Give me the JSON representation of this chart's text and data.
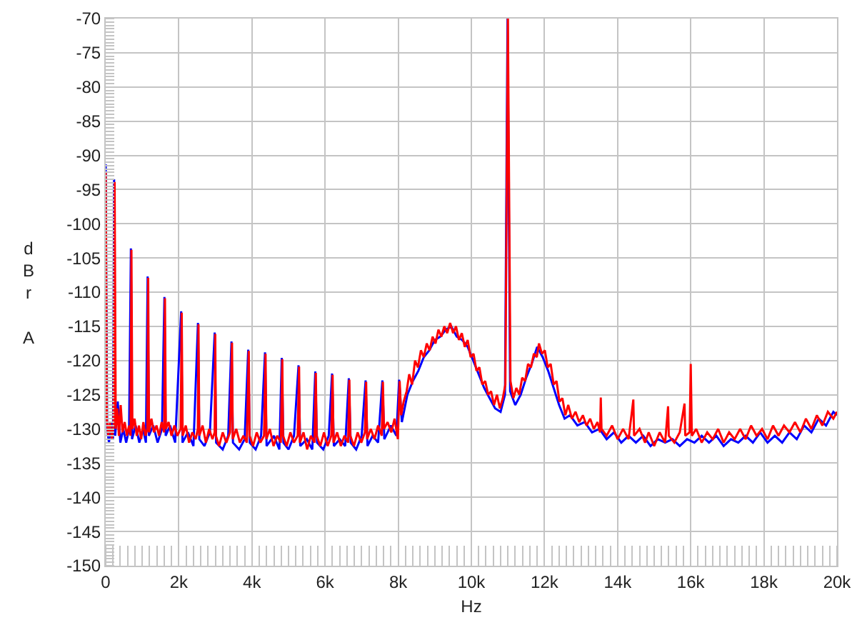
{
  "chart_data": {
    "type": "line",
    "xlabel": "Hz",
    "ylabel": "dBr A",
    "grid": true,
    "xlim": [
      0,
      20000
    ],
    "xticks": [
      0,
      {
        "value": 2000,
        "label": "2k"
      },
      {
        "value": 4000,
        "label": "4k"
      },
      {
        "value": 6000,
        "label": "6k"
      },
      {
        "value": 8000,
        "label": "8k"
      },
      {
        "value": 10000,
        "label": "10k"
      },
      {
        "value": 12000,
        "label": "12k"
      },
      {
        "value": 14000,
        "label": "14k"
      },
      {
        "value": 16000,
        "label": "16k"
      },
      {
        "value": 18000,
        "label": "18k"
      },
      {
        "value": 20000,
        "label": "20k"
      }
    ],
    "ylim": [
      -150,
      -70
    ],
    "yticks": [
      -150,
      -145,
      -140,
      -135,
      -130,
      -125,
      -120,
      -115,
      -110,
      -105,
      -100,
      -95,
      -90,
      -85,
      -80,
      -75,
      -70
    ],
    "series": [
      {
        "color": "#0000ff",
        "x": [
          0,
          40,
          90,
          150,
          200,
          230,
          260,
          330,
          400,
          480,
          560,
          640,
          689,
          720,
          820,
          920,
          1020,
          1100,
          1147,
          1180,
          1300,
          1420,
          1540,
          1606,
          1640,
          1760,
          1900,
          2064,
          2100,
          2250,
          2400,
          2523,
          2560,
          2700,
          2850,
          2981,
          3020,
          3200,
          3350,
          3440,
          3480,
          3650,
          3800,
          3898,
          3940,
          4100,
          4250,
          4357,
          4400,
          4600,
          4750,
          4815,
          4860,
          5000,
          5150,
          5274,
          5320,
          5500,
          5650,
          5732,
          5780,
          5950,
          6100,
          6191,
          6240,
          6400,
          6550,
          6649,
          6700,
          6850,
          7000,
          7108,
          7160,
          7300,
          7450,
          7566,
          7620,
          7800,
          7950,
          8025,
          8100,
          8250,
          8400,
          8550,
          8700,
          8850,
          9000,
          9150,
          9300,
          9450,
          9600,
          9750,
          9900,
          10050,
          10200,
          10350,
          10500,
          10650,
          10800,
          10920,
          10990,
          11060,
          11200,
          11350,
          11500,
          11650,
          11800,
          11950,
          12100,
          12250,
          12400,
          12550,
          12700,
          12900,
          13100,
          13300,
          13500,
          13700,
          13900,
          14100,
          14300,
          14500,
          14700,
          14900,
          15100,
          15300,
          15500,
          15700,
          15900,
          16100,
          16300,
          16500,
          16700,
          16900,
          17100,
          17300,
          17500,
          17700,
          17900,
          18100,
          18300,
          18500,
          18700,
          18900,
          19100,
          19300,
          19500,
          19700,
          19900,
          20000
        ],
        "values": [
          -91.3,
          -130,
          -132,
          -129,
          -131.5,
          -93.5,
          -131,
          -126,
          -132,
          -130,
          -132,
          -130,
          -103.6,
          -131.5,
          -129.5,
          -132,
          -130,
          -132,
          -107.7,
          -131,
          -129.5,
          -132,
          -130,
          -110.7,
          -131,
          -129.5,
          -132,
          -112.8,
          -132,
          -130.5,
          -132.5,
          -114.5,
          -131.5,
          -132.5,
          -130.5,
          -115.9,
          -132,
          -133,
          -131,
          -117.2,
          -132,
          -133,
          -131.5,
          -118.4,
          -132,
          -133,
          -131,
          -118.8,
          -132.5,
          -131,
          -133,
          -119.6,
          -132,
          -133,
          -131,
          -120.7,
          -132.5,
          -131.5,
          -133,
          -121.6,
          -132,
          -133,
          -131,
          -121.9,
          -132.5,
          -131.5,
          -132.5,
          -122.6,
          -132,
          -133,
          -131,
          -122.9,
          -132.5,
          -131,
          -132,
          -122.9,
          -131.5,
          -129.5,
          -131,
          -122.8,
          -129,
          -125,
          -123,
          -121.5,
          -119.5,
          -118.5,
          -117,
          -116.5,
          -115.5,
          -115,
          -116.5,
          -117,
          -118,
          -120,
          -122,
          -124,
          -125.5,
          -127,
          -127.5,
          -125,
          -70,
          -124.5,
          -126.5,
          -125,
          -122.5,
          -120.5,
          -118,
          -119.5,
          -121.5,
          -124,
          -126.5,
          -128.5,
          -128,
          -129.5,
          -129,
          -130.5,
          -130,
          -131.5,
          -130.5,
          -132,
          -131,
          -132,
          -131,
          -132.5,
          -131.5,
          -132,
          -131.5,
          -132.5,
          -131.5,
          -132,
          -131,
          -132,
          -131,
          -132.5,
          -131.5,
          -132,
          -131,
          -132,
          -130.5,
          -132,
          -131,
          -132,
          -130.5,
          -131.5,
          -129.5,
          -130.5,
          -128.5,
          -129.5,
          -127.5,
          -128
        ]
      },
      {
        "color": "#ff0000",
        "x": [
          0,
          30,
          70,
          120,
          170,
          215,
          245,
          275,
          320,
          360,
          410,
          460,
          520,
          580,
          640,
          680,
          704,
          730,
          790,
          850,
          910,
          970,
          1030,
          1090,
          1140,
          1162,
          1185,
          1250,
          1320,
          1390,
          1460,
          1530,
          1600,
          1621,
          1645,
          1720,
          1800,
          1880,
          1960,
          2050,
          2079,
          2105,
          2190,
          2280,
          2370,
          2460,
          2520,
          2538,
          2560,
          2650,
          2740,
          2830,
          2920,
          2980,
          2996,
          3015,
          3100,
          3200,
          3300,
          3400,
          3455,
          3475,
          3570,
          3670,
          3770,
          3860,
          3913,
          3935,
          4030,
          4130,
          4230,
          4330,
          4372,
          4395,
          4490,
          4590,
          4690,
          4790,
          4830,
          4850,
          4950,
          5050,
          5150,
          5250,
          5289,
          5310,
          5410,
          5510,
          5610,
          5710,
          5747,
          5770,
          5870,
          5970,
          6070,
          6170,
          6206,
          6230,
          6330,
          6430,
          6530,
          6630,
          6664,
          6690,
          6790,
          6890,
          6990,
          7090,
          7123,
          7150,
          7250,
          7350,
          7450,
          7550,
          7581,
          7610,
          7710,
          7810,
          7900,
          7990,
          8040,
          8080,
          8150,
          8230,
          8300,
          8380,
          8460,
          8540,
          8620,
          8700,
          8780,
          8860,
          8940,
          9020,
          9100,
          9180,
          9260,
          9340,
          9420,
          9500,
          9580,
          9660,
          9740,
          9820,
          9900,
          9980,
          10060,
          10140,
          10220,
          10300,
          10380,
          10460,
          10540,
          10620,
          10700,
          10780,
          10860,
          10930,
          11000,
          11070,
          11150,
          11230,
          11310,
          11390,
          11470,
          11550,
          11630,
          11710,
          11790,
          11850,
          11930,
          12010,
          12090,
          12170,
          12250,
          12330,
          12410,
          12490,
          12570,
          12650,
          12750,
          12850,
          12950,
          13050,
          13150,
          13250,
          13350,
          13450,
          13520,
          13540,
          13560,
          13700,
          13850,
          14000,
          14150,
          14300,
          14430,
          14450,
          14600,
          14750,
          14850,
          15000,
          15150,
          15300,
          15380,
          15400,
          15550,
          15700,
          15830,
          15850,
          15970,
          16000,
          16030,
          16150,
          16300,
          16450,
          16600,
          16750,
          16900,
          17050,
          17200,
          17350,
          17500,
          17650,
          17800,
          17950,
          18100,
          18250,
          18400,
          18550,
          18700,
          18850,
          19000,
          19150,
          19300,
          19450,
          19600,
          19750,
          19900,
          20000
        ],
        "values": [
          -92.5,
          -128.5,
          -131,
          -129,
          -131.5,
          -129.5,
          -93.9,
          -130,
          -127,
          -131,
          -126.5,
          -130.5,
          -129,
          -131,
          -129.5,
          -131,
          -103.8,
          -130,
          -128.5,
          -131,
          -129.5,
          -131.5,
          -129,
          -131,
          -130,
          -107.9,
          -130.5,
          -128.5,
          -130.5,
          -129.5,
          -131,
          -129,
          -130.5,
          -110.9,
          -130,
          -129,
          -131,
          -129.5,
          -131,
          -130,
          -113,
          -131,
          -129.5,
          -132,
          -130.5,
          -131.5,
          -130,
          -114.7,
          -131,
          -129.5,
          -132,
          -130,
          -131.5,
          -130.5,
          -116.1,
          -131,
          -132.5,
          -130.5,
          -132,
          -130.5,
          -117.4,
          -131.5,
          -130,
          -132,
          -131,
          -132,
          -118.6,
          -131,
          -132.5,
          -130.5,
          -132,
          -131,
          -119,
          -131.5,
          -130,
          -132.5,
          -131,
          -132,
          -119.8,
          -131,
          -132.5,
          -130.5,
          -132,
          -131,
          -120.9,
          -132,
          -130.5,
          -133,
          -131,
          -132,
          -121.8,
          -131,
          -132.5,
          -130.5,
          -132.5,
          -131,
          -122.1,
          -132,
          -130.5,
          -132.5,
          -131,
          -132,
          -122.8,
          -131,
          -132.5,
          -130.5,
          -132,
          -130.5,
          -123.1,
          -131.5,
          -130,
          -131.5,
          -129.5,
          -131,
          -123.1,
          -130,
          -129,
          -130.5,
          -128.5,
          -131.5,
          -123,
          -128,
          -126,
          -124.5,
          -122,
          -123.5,
          -120,
          -121,
          -118.5,
          -119.5,
          -117.5,
          -118.5,
          -116.5,
          -117.5,
          -115.5,
          -116.5,
          -115,
          -116,
          -114.5,
          -116,
          -115,
          -117,
          -116,
          -118,
          -117,
          -119.5,
          -119,
          -121.5,
          -121,
          -123.5,
          -123,
          -125,
          -124.5,
          -126.5,
          -125,
          -127,
          -125.5,
          -123.5,
          -70,
          -123,
          -125.5,
          -124,
          -125,
          -122.5,
          -123,
          -120.5,
          -121,
          -119,
          -119.5,
          -117.5,
          -119,
          -118.5,
          -121,
          -120.5,
          -123.5,
          -123,
          -126,
          -125.5,
          -128,
          -126.5,
          -128.5,
          -127.5,
          -129,
          -128,
          -129.5,
          -128.5,
          -130,
          -129,
          -130.5,
          -125.4,
          -130,
          -131,
          -129.5,
          -131.5,
          -130,
          -131.5,
          -125.7,
          -131,
          -130,
          -132,
          -130.5,
          -132.5,
          -130.5,
          -132,
          -126.7,
          -131,
          -132,
          -130.5,
          -126.3,
          -131,
          -130.5,
          -120.5,
          -131,
          -130,
          -132,
          -130.5,
          -131.5,
          -130,
          -132,
          -130.5,
          -131.5,
          -130,
          -131.5,
          -129.5,
          -131,
          -130,
          -131.5,
          -129.5,
          -131,
          -129.5,
          -130.5,
          -129,
          -130.5,
          -128.5,
          -130,
          -128,
          -129.5,
          -127.5,
          -128.5,
          -127.5
        ]
      }
    ]
  }
}
